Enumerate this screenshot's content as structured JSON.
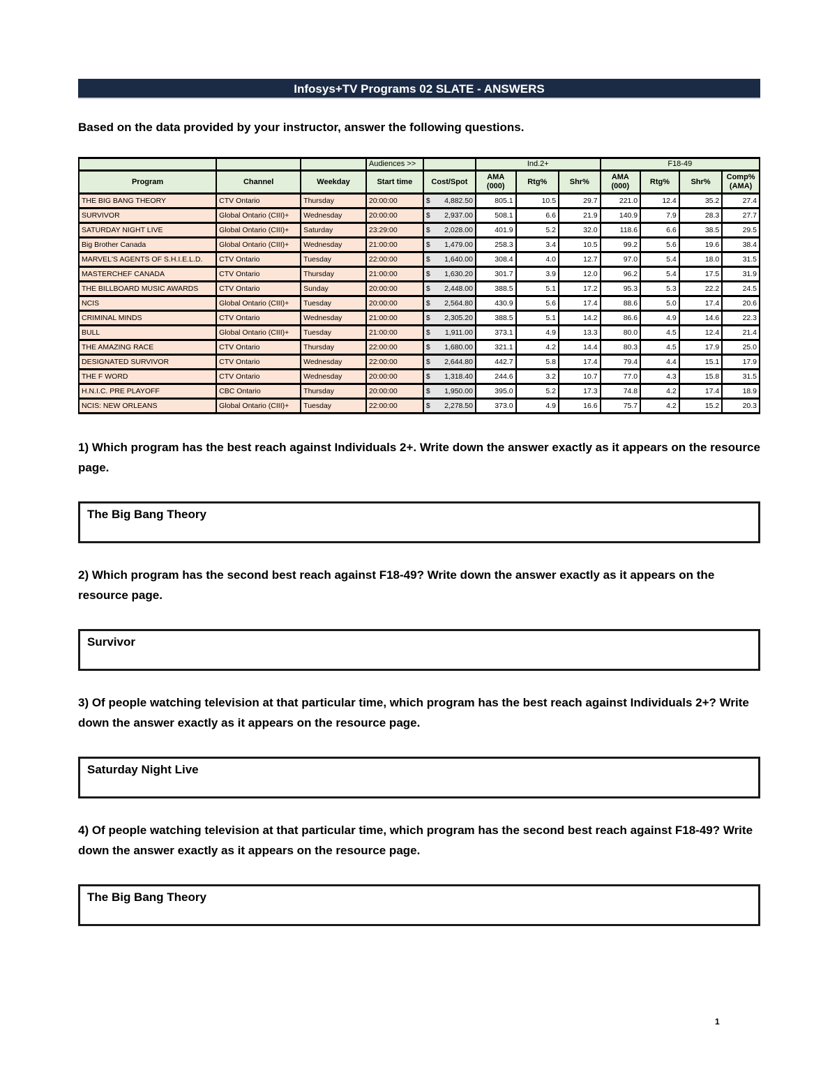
{
  "page": {
    "title": "Infosys+TV Programs 02 SLATE - ANSWERS",
    "intro": "Based on the data provided by your instructor, answer the following questions.",
    "page_number": "1"
  },
  "colors": {
    "title_bar_bg": "#1C2B45",
    "header_green": "#E2EFDA",
    "row_peach": "#FCE4D6",
    "cost_gray": "#E7E6E6"
  },
  "table": {
    "audiences_label": "Audiences >>",
    "currency_symbol": "$",
    "groups": [
      "Ind.2+",
      "F18-49"
    ],
    "columns": [
      "Program",
      "Channel",
      "Weekday",
      "Start time",
      "Cost/Spot",
      "AMA (000)",
      "Rtg%",
      "Shr%",
      "AMA (000)",
      "Rtg%",
      "Shr%",
      "Comp% (AMA)"
    ],
    "rows": [
      [
        "THE BIG BANG THEORY",
        "CTV Ontario",
        "Thursday",
        "20:00:00",
        "4,882.50",
        "805.1",
        "10.5",
        "29.7",
        "221.0",
        "12.4",
        "35.2",
        "27.4"
      ],
      [
        "SURVIVOR",
        "Global Ontario (CIII)+",
        "Wednesday",
        "20:00:00",
        "2,937.00",
        "508.1",
        "6.6",
        "21.9",
        "140.9",
        "7.9",
        "28.3",
        "27.7"
      ],
      [
        "SATURDAY NIGHT LIVE",
        "Global Ontario (CIII)+",
        "Saturday",
        "23:29:00",
        "2,028.00",
        "401.9",
        "5.2",
        "32.0",
        "118.6",
        "6.6",
        "38.5",
        "29.5"
      ],
      [
        "Big Brother Canada",
        "Global Ontario (CIII)+",
        "Wednesday",
        "21:00:00",
        "1,479.00",
        "258.3",
        "3.4",
        "10.5",
        "99.2",
        "5.6",
        "19.6",
        "38.4"
      ],
      [
        "MARVEL'S AGENTS OF S.H.I.E.L.D.",
        "CTV Ontario",
        "Tuesday",
        "22:00:00",
        "1,640.00",
        "308.4",
        "4.0",
        "12.7",
        "97.0",
        "5.4",
        "18.0",
        "31.5"
      ],
      [
        "MASTERCHEF CANADA",
        "CTV Ontario",
        "Thursday",
        "21:00:00",
        "1,630.20",
        "301.7",
        "3.9",
        "12.0",
        "96.2",
        "5.4",
        "17.5",
        "31.9"
      ],
      [
        "THE BILLBOARD MUSIC AWARDS",
        "CTV Ontario",
        "Sunday",
        "20:00:00",
        "2,448.00",
        "388.5",
        "5.1",
        "17.2",
        "95.3",
        "5.3",
        "22.2",
        "24.5"
      ],
      [
        "NCIS",
        "Global Ontario (CIII)+",
        "Tuesday",
        "20:00:00",
        "2,564.80",
        "430.9",
        "5.6",
        "17.4",
        "88.6",
        "5.0",
        "17.4",
        "20.6"
      ],
      [
        "CRIMINAL MINDS",
        "CTV Ontario",
        "Wednesday",
        "21:00:00",
        "2,305.20",
        "388.5",
        "5.1",
        "14.2",
        "86.6",
        "4.9",
        "14.6",
        "22.3"
      ],
      [
        "BULL",
        "Global Ontario (CIII)+",
        "Tuesday",
        "21:00:00",
        "1,911.00",
        "373.1",
        "4.9",
        "13.3",
        "80.0",
        "4.5",
        "12.4",
        "21.4"
      ],
      [
        "THE AMAZING RACE",
        "CTV Ontario",
        "Thursday",
        "22:00:00",
        "1,680.00",
        "321.1",
        "4.2",
        "14.4",
        "80.3",
        "4.5",
        "17.9",
        "25.0"
      ],
      [
        "DESIGNATED SURVIVOR",
        "CTV Ontario",
        "Wednesday",
        "22:00:00",
        "2,644.80",
        "442.7",
        "5.8",
        "17.4",
        "79.4",
        "4.4",
        "15.1",
        "17.9"
      ],
      [
        "THE F WORD",
        "CTV Ontario",
        "Wednesday",
        "20:00:00",
        "1,318.40",
        "244.6",
        "3.2",
        "10.7",
        "77.0",
        "4.3",
        "15.8",
        "31.5"
      ],
      [
        "H.N.I.C. PRE PLAYOFF",
        "CBC Ontario",
        "Thursday",
        "20:00:00",
        "1,950.00",
        "395.0",
        "5.2",
        "17.3",
        "74.8",
        "4.2",
        "17.4",
        "18.9"
      ],
      [
        "NCIS: NEW ORLEANS",
        "Global Ontario (CIII)+",
        "Tuesday",
        "22:00:00",
        "2,278.50",
        "373.0",
        "4.9",
        "16.6",
        "75.7",
        "4.2",
        "15.2",
        "20.3"
      ]
    ]
  },
  "questions": [
    {
      "text": "1) Which program has the best reach against Individuals 2+. Write down the answer exactly as it appears on the resource page.",
      "answer": "The Big Bang Theory"
    },
    {
      "text": "2) Which program has the second best reach against F18-49? Write down the answer exactly as it appears on the resource page.",
      "answer": "Survivor"
    },
    {
      "text": "3) Of people watching television at that particular time, which program has the best reach against Individuals 2+? Write down the answer exactly as it appears on the resource page.",
      "answer": "Saturday Night Live"
    },
    {
      "text": "4) Of people watching television at that particular time, which program has the second best reach against F18-49? Write down the answer exactly as it appears on the resource page.",
      "answer": "The Big Bang Theory"
    }
  ]
}
